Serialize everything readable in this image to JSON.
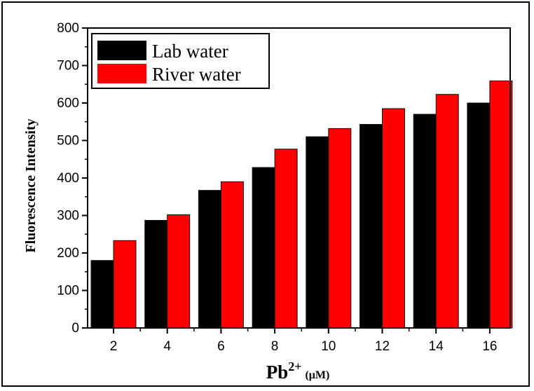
{
  "chart_data": {
    "type": "bar",
    "categories": [
      "2",
      "4",
      "6",
      "8",
      "10",
      "12",
      "14",
      "16"
    ],
    "series": [
      {
        "name": "Lab water",
        "color": "#000000",
        "values": [
          180,
          287,
          367,
          428,
          510,
          543,
          570,
          600
        ]
      },
      {
        "name": "River water",
        "color": "#ff0000",
        "values": [
          233,
          302,
          390,
          477,
          532,
          585,
          623,
          659
        ]
      }
    ],
    "ylabel": "Fluorescence Intensity",
    "xlabel_base": "Pb",
    "xlabel_sup": "2+",
    "xlabel_unit": "(μM)",
    "ylim": [
      0,
      800
    ],
    "yticks": [
      "0",
      "100",
      "200",
      "300",
      "400",
      "500",
      "600",
      "700",
      "800"
    ],
    "legend_position": "top-left",
    "grid": false
  }
}
